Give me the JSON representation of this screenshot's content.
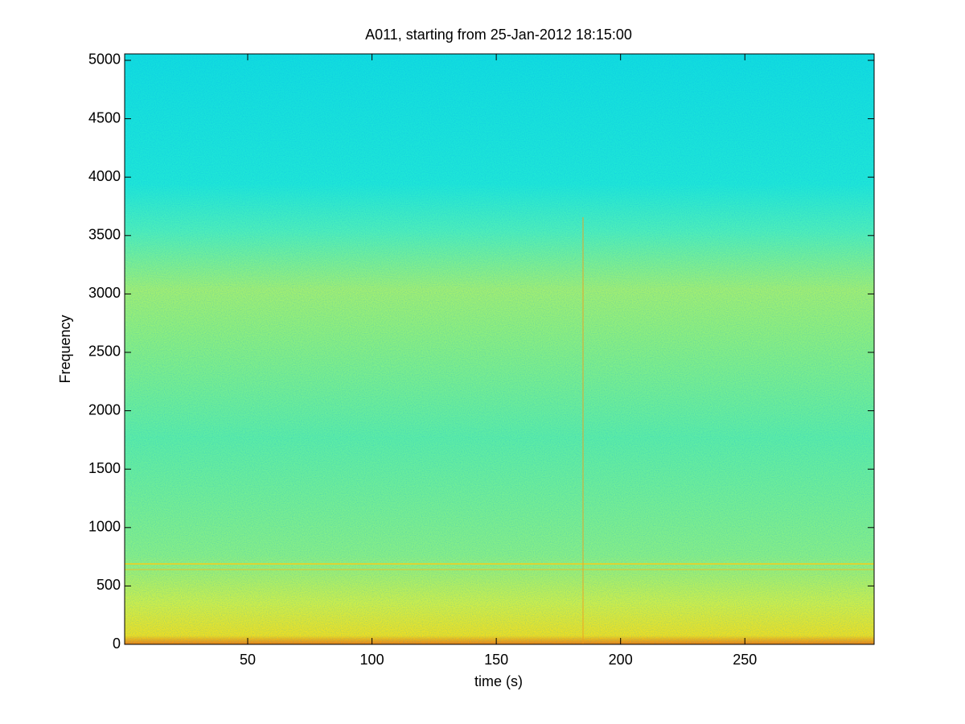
{
  "chart_data": {
    "type": "spectrogram",
    "title": "A011, starting from 25-Jan-2012 18:15:00",
    "x_label": "time (s)",
    "y_label": "Frequency",
    "xlim": [
      0.5,
      302
    ],
    "xticks": [
      50,
      100,
      150,
      200,
      250
    ],
    "ylim": [
      0,
      5055
    ],
    "yticks": [
      0,
      500,
      1000,
      1500,
      2000,
      2500,
      3000,
      3500,
      4000,
      4500,
      5000
    ]
  }
}
